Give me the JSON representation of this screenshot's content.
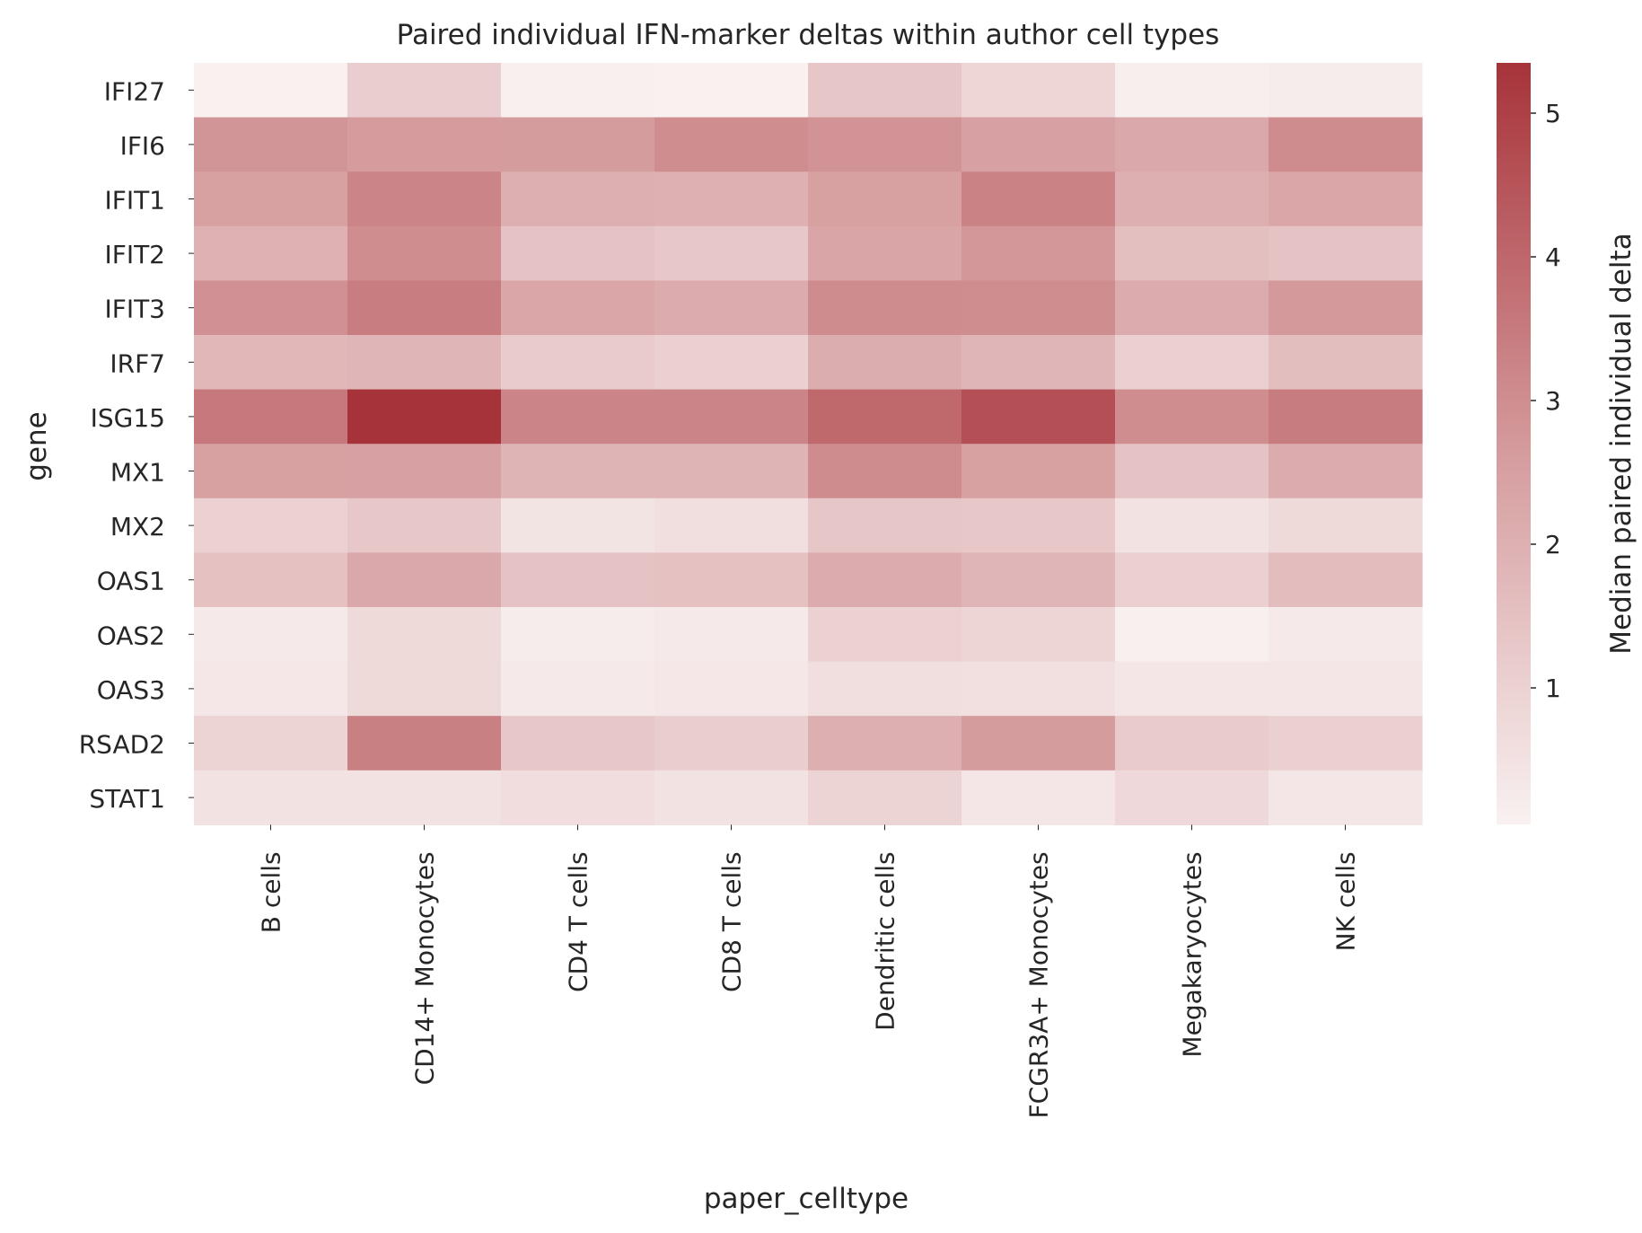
{
  "chart_data": {
    "type": "heatmap",
    "title": "Paired individual IFN-marker deltas within author cell types",
    "xlabel": "paper_celltype",
    "ylabel": "gene",
    "colorbar_label": "Median paired individual delta",
    "colorbar_ticks": [
      1,
      2,
      3,
      4,
      5
    ],
    "colorbar_range": [
      0.05,
      5.35
    ],
    "colors": {
      "low": "#f9f1f1",
      "mid": "#d4999b",
      "high": "#a7333a"
    },
    "categories": [
      "B cells",
      "CD14+ Monocytes",
      "CD4 T cells",
      "CD8 T cells",
      "Dendritic cells",
      "FCGR3A+ Monocytes",
      "Megakaryocytes",
      "NK cells"
    ],
    "genes": [
      "IFI27",
      "IFI6",
      "IFIT1",
      "IFIT2",
      "IFIT3",
      "IRF7",
      "ISG15",
      "MX1",
      "MX2",
      "OAS1",
      "OAS2",
      "OAS3",
      "RSAD2",
      "STAT1"
    ],
    "values": [
      [
        0.08,
        1.1,
        0.1,
        0.08,
        1.35,
        0.85,
        0.15,
        0.2
      ],
      [
        2.8,
        2.65,
        2.6,
        3.0,
        2.85,
        2.45,
        2.25,
        3.05
      ],
      [
        2.5,
        3.25,
        2.05,
        2.0,
        2.5,
        3.3,
        2.05,
        2.3
      ],
      [
        1.95,
        3.0,
        1.45,
        1.3,
        2.35,
        2.75,
        1.55,
        1.45
      ],
      [
        2.9,
        3.4,
        2.3,
        2.15,
        3.05,
        3.0,
        2.15,
        2.7
      ],
      [
        1.8,
        1.85,
        1.2,
        1.05,
        2.1,
        1.85,
        1.05,
        1.6
      ],
      [
        3.55,
        5.35,
        3.25,
        3.25,
        3.95,
        4.6,
        3.0,
        3.45
      ],
      [
        2.5,
        2.45,
        1.9,
        1.9,
        3.05,
        2.5,
        1.45,
        2.15
      ],
      [
        1.0,
        1.3,
        0.45,
        0.6,
        1.35,
        1.3,
        0.5,
        0.75
      ],
      [
        1.5,
        2.25,
        1.45,
        1.5,
        2.15,
        1.85,
        1.05,
        1.65
      ],
      [
        0.3,
        0.75,
        0.2,
        0.3,
        1.0,
        0.9,
        0.12,
        0.28
      ],
      [
        0.35,
        0.75,
        0.3,
        0.35,
        0.6,
        0.55,
        0.4,
        0.4
      ],
      [
        0.95,
        3.35,
        1.3,
        1.1,
        2.05,
        2.6,
        1.2,
        1.05
      ],
      [
        0.5,
        0.5,
        0.65,
        0.5,
        0.95,
        0.4,
        0.8,
        0.4
      ]
    ]
  }
}
